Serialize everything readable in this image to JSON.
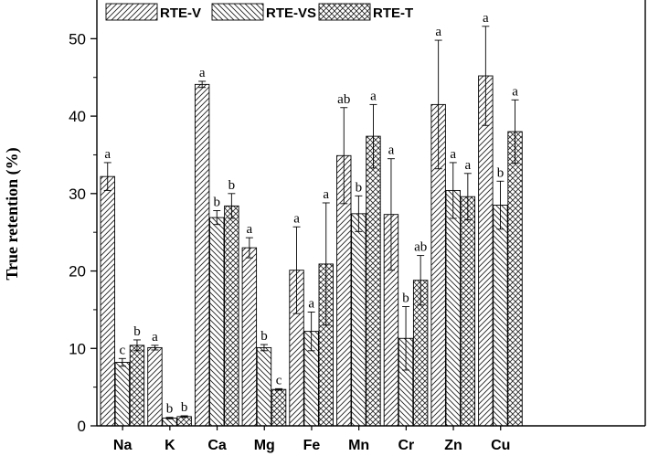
{
  "chart_data": {
    "type": "bar",
    "ylabel": "True retention (%)",
    "ylim": [
      0,
      55
    ],
    "yticks": [
      0,
      10,
      20,
      30,
      40,
      50
    ],
    "legend_position": "top",
    "categories": [
      "Na",
      "K",
      "Ca",
      "Mg",
      "Fe",
      "Mn",
      "Cr",
      "Zn",
      "Cu"
    ],
    "series": [
      {
        "name": "RTE-V",
        "pattern": "forward-diagonal",
        "values": [
          32.2,
          10.1,
          44.1,
          23.0,
          20.1,
          34.9,
          27.3,
          41.5,
          45.2
        ],
        "errors": [
          1.8,
          0.3,
          0.4,
          1.3,
          5.6,
          6.2,
          7.2,
          8.3,
          6.4
        ],
        "labels": [
          "a",
          "a",
          "a",
          "a",
          "a",
          "ab",
          "a",
          "a",
          "a"
        ]
      },
      {
        "name": "RTE-VS",
        "pattern": "back-diagonal",
        "values": [
          8.2,
          1.0,
          26.9,
          10.1,
          12.2,
          27.4,
          11.3,
          30.4,
          28.5
        ],
        "errors": [
          0.5,
          0.1,
          0.9,
          0.4,
          2.5,
          2.3,
          4.1,
          3.6,
          3.1
        ],
        "labels": [
          "c",
          "b",
          "b",
          "b",
          "a",
          "b",
          "b",
          "a",
          "b"
        ]
      },
      {
        "name": "RTE-T",
        "pattern": "crosshatch",
        "values": [
          10.4,
          1.2,
          28.4,
          4.7,
          20.9,
          37.4,
          18.8,
          29.6,
          38.0
        ],
        "errors": [
          0.7,
          0.1,
          1.6,
          0.1,
          7.9,
          4.1,
          3.2,
          3.0,
          4.1
        ],
        "labels": [
          "b",
          "b",
          "b",
          "c",
          "a",
          "a",
          "ab",
          "a",
          "a"
        ]
      }
    ]
  }
}
